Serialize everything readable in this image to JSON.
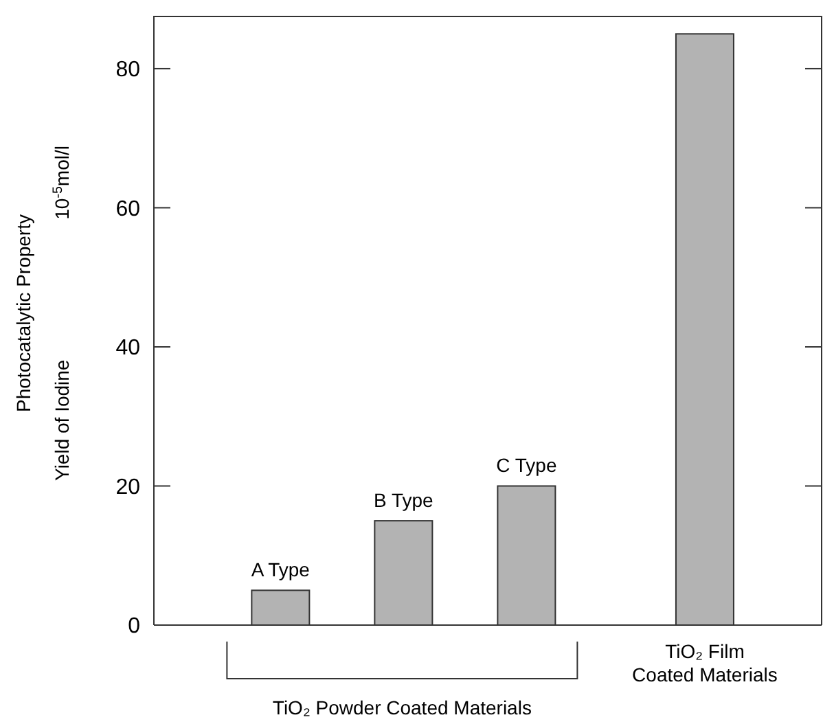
{
  "chart_data": {
    "type": "bar",
    "categories": [
      "A Type",
      "B Type",
      "C Type",
      "TiO₂ Film Coated Materials"
    ],
    "values": [
      5,
      15,
      20,
      85
    ],
    "color": "#b3b3b3",
    "ylim": [
      0,
      87.5
    ],
    "yticks": [
      0,
      20,
      40,
      60,
      80
    ],
    "ylabel": "Photocatalytic Property\nYield of Iodine  10$^{-5}$mol/l",
    "annotations": [
      "TiO₂ Powder Coated Materials"
    ]
  }
}
